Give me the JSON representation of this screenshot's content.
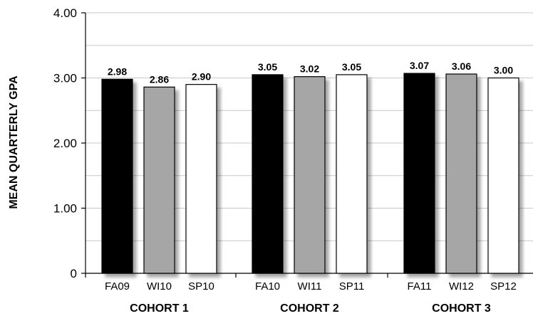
{
  "chart_data": {
    "type": "bar",
    "ylabel": "MEAN QUARTERLY GPA",
    "xlabel": "",
    "ylim": [
      0,
      4
    ],
    "yticks": [
      {
        "value": 0,
        "label": "0"
      },
      {
        "value": 1,
        "label": "1.00"
      },
      {
        "value": 2,
        "label": "2.00"
      },
      {
        "value": 3,
        "label": "3.00"
      },
      {
        "value": 4,
        "label": "4.00"
      }
    ],
    "grid": true,
    "grid_step": 0.5,
    "groups": [
      {
        "label": "COHORT 1",
        "bars": [
          {
            "category": "FA09",
            "value": 2.98,
            "label": "2.98",
            "color": "#000000"
          },
          {
            "category": "WI10",
            "value": 2.86,
            "label": "2.86",
            "color": "#a6a6a6"
          },
          {
            "category": "SP10",
            "value": 2.9,
            "label": "2.90",
            "color": "#ffffff"
          }
        ]
      },
      {
        "label": "COHORT 2",
        "bars": [
          {
            "category": "FA10",
            "value": 3.05,
            "label": "3.05",
            "color": "#000000"
          },
          {
            "category": "WI11",
            "value": 3.02,
            "label": "3.02",
            "color": "#a6a6a6"
          },
          {
            "category": "SP11",
            "value": 3.05,
            "label": "3.05",
            "color": "#ffffff"
          }
        ]
      },
      {
        "label": "COHORT 3",
        "bars": [
          {
            "category": "FA11",
            "value": 3.07,
            "label": "3.07",
            "color": "#000000"
          },
          {
            "category": "WI12",
            "value": 3.06,
            "label": "3.06",
            "color": "#a6a6a6"
          },
          {
            "category": "SP12",
            "value": 3.0,
            "label": "3.00",
            "color": "#ffffff"
          }
        ]
      }
    ]
  }
}
